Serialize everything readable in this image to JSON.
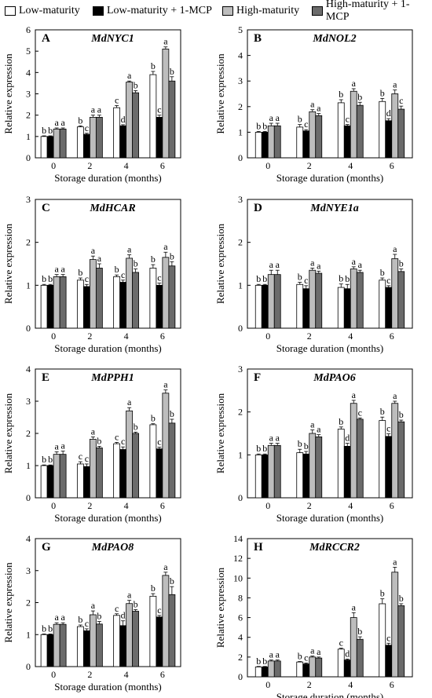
{
  "legend": {
    "items": [
      {
        "label": "Low-maturity",
        "color": "#ffffff"
      },
      {
        "label": "Low-maturity + 1-MCP",
        "color": "#000000"
      },
      {
        "label": "High-maturity",
        "color": "#bdbdbd"
      },
      {
        "label": "High-maturity + 1-MCP",
        "color": "#6b6b6b"
      }
    ]
  },
  "chart_data": [
    {
      "type": "bar",
      "panel": "A",
      "title": "MdNYC1",
      "xlabel": "Storage duration (months)",
      "ylabel": "Relative expression",
      "ylim": [
        0,
        6
      ],
      "yticks": [
        0,
        1,
        2,
        3,
        4,
        5,
        6
      ],
      "categories": [
        "0",
        "2",
        "4",
        "6"
      ],
      "series": [
        {
          "name": "Low-maturity",
          "values": [
            1.0,
            1.45,
            2.35,
            3.9
          ],
          "errors": [
            0.03,
            0.05,
            0.1,
            0.15
          ],
          "letters": [
            "b",
            "b",
            "c",
            "b"
          ]
        },
        {
          "name": "Low-maturity + 1-MCP",
          "values": [
            1.0,
            1.1,
            1.5,
            1.9
          ],
          "errors": [
            0.03,
            0.05,
            0.05,
            0.1
          ],
          "letters": [
            "b",
            "c",
            "d",
            "c"
          ]
        },
        {
          "name": "High-maturity",
          "values": [
            1.35,
            1.9,
            3.55,
            5.1
          ],
          "errors": [
            0.05,
            0.1,
            0.05,
            0.1
          ],
          "letters": [
            "a",
            "a",
            "a",
            "a"
          ]
        },
        {
          "name": "High-maturity + 1-MCP",
          "values": [
            1.35,
            1.9,
            3.05,
            3.6
          ],
          "errors": [
            0.05,
            0.1,
            0.1,
            0.2
          ],
          "letters": [
            "a",
            "a",
            "b",
            "b"
          ]
        }
      ]
    },
    {
      "type": "bar",
      "panel": "B",
      "title": "MdNOL2",
      "xlabel": "Storage duration (months)",
      "ylabel": "Relative expression",
      "ylim": [
        0,
        5
      ],
      "yticks": [
        0,
        1,
        2,
        3,
        4,
        5
      ],
      "categories": [
        "0",
        "2",
        "4",
        "6"
      ],
      "series": [
        {
          "name": "Low-maturity",
          "values": [
            1.0,
            1.2,
            2.15,
            2.2
          ],
          "errors": [
            0.03,
            0.1,
            0.12,
            0.12
          ],
          "letters": [
            "b",
            "b",
            "b",
            "b"
          ]
        },
        {
          "name": "Low-maturity + 1-MCP",
          "values": [
            1.0,
            1.05,
            1.25,
            1.45
          ],
          "errors": [
            0.03,
            0.05,
            0.05,
            0.08
          ],
          "letters": [
            "b",
            "c",
            "c",
            "d"
          ]
        },
        {
          "name": "High-maturity",
          "values": [
            1.25,
            1.8,
            2.6,
            2.5
          ],
          "errors": [
            0.1,
            0.08,
            0.1,
            0.15
          ],
          "letters": [
            "a",
            "a",
            "a",
            "a"
          ]
        },
        {
          "name": "High-maturity + 1-MCP",
          "values": [
            1.25,
            1.65,
            2.05,
            1.9
          ],
          "errors": [
            0.1,
            0.08,
            0.12,
            0.12
          ],
          "letters": [
            "a",
            "a",
            "b",
            "c"
          ]
        }
      ]
    },
    {
      "type": "bar",
      "panel": "C",
      "title": "MdHCAR",
      "xlabel": "Storage duration (months)",
      "ylabel": "Relative expression",
      "ylim": [
        0,
        3
      ],
      "yticks": [
        0,
        1,
        2,
        3
      ],
      "categories": [
        "0",
        "2",
        "4",
        "6"
      ],
      "series": [
        {
          "name": "Low-maturity",
          "values": [
            1.0,
            1.12,
            1.2,
            1.4
          ],
          "errors": [
            0.02,
            0.05,
            0.04,
            0.08
          ],
          "letters": [
            "b",
            "b",
            "b",
            "b"
          ]
        },
        {
          "name": "Low-maturity + 1-MCP",
          "values": [
            1.0,
            0.97,
            1.07,
            1.0
          ],
          "errors": [
            0.02,
            0.05,
            0.05,
            0.05
          ],
          "letters": [
            "b",
            "c",
            "c",
            "c"
          ]
        },
        {
          "name": "High-maturity",
          "values": [
            1.2,
            1.6,
            1.63,
            1.65
          ],
          "errors": [
            0.05,
            0.08,
            0.08,
            0.12
          ],
          "letters": [
            "a",
            "a",
            "a",
            "a"
          ]
        },
        {
          "name": "High-maturity + 1-MCP",
          "values": [
            1.2,
            1.4,
            1.3,
            1.45
          ],
          "errors": [
            0.05,
            0.1,
            0.08,
            0.1
          ],
          "letters": [
            "a",
            "a",
            "b",
            "b"
          ]
        }
      ]
    },
    {
      "type": "bar",
      "panel": "D",
      "title": "MdNYE1a",
      "xlabel": "Storage duration (months)",
      "ylabel": "Relative expression",
      "ylim": [
        0,
        3
      ],
      "yticks": [
        0,
        1,
        2,
        3
      ],
      "categories": [
        "0",
        "2",
        "4",
        "6"
      ],
      "series": [
        {
          "name": "Low-maturity",
          "values": [
            1.0,
            1.02,
            0.95,
            1.12
          ],
          "errors": [
            0.02,
            0.05,
            0.08,
            0.05
          ],
          "letters": [
            "b",
            "b",
            "b",
            "b"
          ]
        },
        {
          "name": "Low-maturity + 1-MCP",
          "values": [
            1.0,
            0.92,
            0.92,
            0.95
          ],
          "errors": [
            0.02,
            0.07,
            0.1,
            0.04
          ],
          "letters": [
            "b",
            "c",
            "b",
            "c"
          ]
        },
        {
          "name": "High-maturity",
          "values": [
            1.25,
            1.35,
            1.38,
            1.62
          ],
          "errors": [
            0.1,
            0.05,
            0.05,
            0.1
          ],
          "letters": [
            "a",
            "a",
            "a",
            "a"
          ]
        },
        {
          "name": "High-maturity + 1-MCP",
          "values": [
            1.25,
            1.28,
            1.3,
            1.32
          ],
          "errors": [
            0.1,
            0.05,
            0.05,
            0.06
          ],
          "letters": [
            "a",
            "a",
            "a",
            "b"
          ]
        }
      ]
    },
    {
      "type": "bar",
      "panel": "E",
      "title": "MdPPH1",
      "xlabel": "Storage duration (months)",
      "ylabel": "Relative expression",
      "ylim": [
        0,
        4
      ],
      "yticks": [
        0,
        1,
        2,
        3,
        4
      ],
      "categories": [
        "0",
        "2",
        "4",
        "6"
      ],
      "series": [
        {
          "name": "Low-maturity",
          "values": [
            1.0,
            1.05,
            1.68,
            2.27
          ],
          "errors": [
            0.02,
            0.07,
            0.04,
            0.03
          ],
          "letters": [
            "b",
            "c",
            "c",
            "b"
          ]
        },
        {
          "name": "Low-maturity + 1-MCP",
          "values": [
            1.0,
            0.97,
            1.5,
            1.52
          ],
          "errors": [
            0.02,
            0.08,
            0.08,
            0.05
          ],
          "letters": [
            "b",
            "c",
            "c",
            "c"
          ]
        },
        {
          "name": "High-maturity",
          "values": [
            1.35,
            1.82,
            2.7,
            3.25
          ],
          "errors": [
            0.08,
            0.07,
            0.1,
            0.1
          ],
          "letters": [
            "a",
            "a",
            "a",
            "a"
          ]
        },
        {
          "name": "High-maturity + 1-MCP",
          "values": [
            1.35,
            1.55,
            2.0,
            2.32
          ],
          "errors": [
            0.1,
            0.05,
            0.04,
            0.12
          ],
          "letters": [
            "a",
            "b",
            "b",
            "b"
          ]
        }
      ]
    },
    {
      "type": "bar",
      "panel": "F",
      "title": "MdPAO6",
      "xlabel": "Storage duration (months)",
      "ylabel": "Relative expression",
      "ylim": [
        0,
        3
      ],
      "yticks": [
        0,
        1,
        2,
        3
      ],
      "categories": [
        "0",
        "2",
        "4",
        "6"
      ],
      "series": [
        {
          "name": "Low-maturity",
          "values": [
            1.0,
            1.05,
            1.6,
            1.8
          ],
          "errors": [
            0.02,
            0.08,
            0.05,
            0.08
          ],
          "letters": [
            "b",
            "b",
            "b",
            "b"
          ]
        },
        {
          "name": "Low-maturity + 1-MCP",
          "values": [
            1.0,
            1.02,
            1.2,
            1.43
          ],
          "errors": [
            0.02,
            0.06,
            0.07,
            0.06
          ],
          "letters": [
            "b",
            "b",
            "d",
            "c"
          ]
        },
        {
          "name": "High-maturity",
          "values": [
            1.22,
            1.5,
            2.2,
            2.2
          ],
          "errors": [
            0.05,
            0.08,
            0.07,
            0.05
          ],
          "letters": [
            "a",
            "a",
            "a",
            "a"
          ]
        },
        {
          "name": "High-maturity + 1-MCP",
          "values": [
            1.22,
            1.42,
            1.83,
            1.77
          ],
          "errors": [
            0.05,
            0.05,
            0.03,
            0.04
          ],
          "letters": [
            "a",
            "a",
            "c",
            "b"
          ]
        }
      ]
    },
    {
      "type": "bar",
      "panel": "G",
      "title": "MdPAO8",
      "xlabel": "Storage duration (months)",
      "ylabel": "Relative expression",
      "ylim": [
        0,
        4
      ],
      "yticks": [
        0,
        1,
        2,
        3,
        4
      ],
      "categories": [
        "0",
        "2",
        "4",
        "6"
      ],
      "series": [
        {
          "name": "Low-maturity",
          "values": [
            1.0,
            1.25,
            1.6,
            2.2
          ],
          "errors": [
            0.02,
            0.05,
            0.05,
            0.08
          ],
          "letters": [
            "b",
            "b",
            "c",
            "b"
          ]
        },
        {
          "name": "Low-maturity + 1-MCP",
          "values": [
            1.0,
            1.12,
            1.28,
            1.55
          ],
          "errors": [
            0.02,
            0.06,
            0.15,
            0.05
          ],
          "letters": [
            "b",
            "c",
            "d",
            "c"
          ]
        },
        {
          "name": "High-maturity",
          "values": [
            1.32,
            1.62,
            1.97,
            2.85
          ],
          "errors": [
            0.05,
            0.12,
            0.1,
            0.1
          ],
          "letters": [
            "a",
            "a",
            "a",
            "a"
          ]
        },
        {
          "name": "High-maturity + 1-MCP",
          "values": [
            1.32,
            1.33,
            1.73,
            2.25
          ],
          "errors": [
            0.05,
            0.08,
            0.05,
            0.25
          ],
          "letters": [
            "a",
            "b",
            "b",
            "b"
          ]
        }
      ]
    },
    {
      "type": "bar",
      "panel": "H",
      "title": "MdRCCR2",
      "xlabel": "Storage duration (months)",
      "ylabel": "Relative expression",
      "ylim": [
        0,
        14
      ],
      "yticks": [
        0,
        2,
        4,
        6,
        8,
        10,
        12,
        14
      ],
      "categories": [
        "0",
        "2",
        "4",
        "6"
      ],
      "series": [
        {
          "name": "Low-maturity",
          "values": [
            1.0,
            1.5,
            2.8,
            7.4
          ],
          "errors": [
            0.05,
            0.05,
            0.1,
            0.5
          ],
          "letters": [
            "b",
            "b",
            "c",
            "b"
          ]
        },
        {
          "name": "Low-maturity + 1-MCP",
          "values": [
            1.0,
            1.3,
            1.7,
            3.2
          ],
          "errors": [
            0.05,
            0.1,
            0.1,
            0.2
          ],
          "letters": [
            "b",
            "c",
            "d",
            "c"
          ]
        },
        {
          "name": "High-maturity",
          "values": [
            1.6,
            2.0,
            6.0,
            10.6
          ],
          "errors": [
            0.1,
            0.1,
            0.5,
            0.5
          ],
          "letters": [
            "a",
            "a",
            "a",
            "a"
          ]
        },
        {
          "name": "High-maturity + 1-MCP",
          "values": [
            1.6,
            1.9,
            3.8,
            7.2
          ],
          "errors": [
            0.1,
            0.1,
            0.25,
            0.2
          ],
          "letters": [
            "a",
            "a",
            "b",
            "b"
          ]
        }
      ]
    }
  ]
}
